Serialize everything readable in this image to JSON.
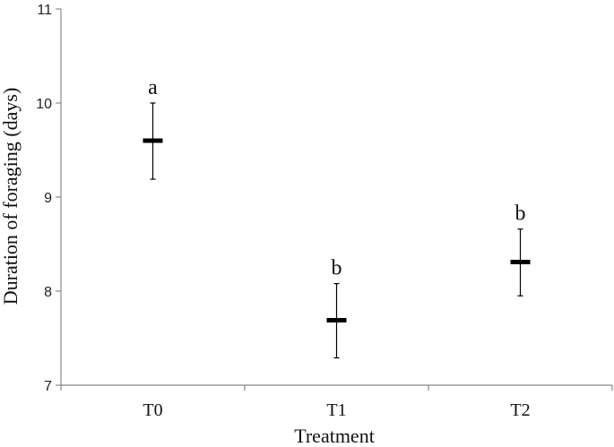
{
  "chart_data": {
    "type": "scatter",
    "title": "",
    "xlabel": "Treatment",
    "ylabel": "Duration of foraging (days)",
    "categories": [
      "T0",
      "T1",
      "T2"
    ],
    "series": [
      {
        "values": [
          9.6,
          7.69,
          8.31
        ],
        "error_low": [
          9.19,
          7.29,
          7.95
        ],
        "error_high": [
          10.0,
          8.08,
          8.66
        ],
        "significance": [
          "a",
          "b",
          "b"
        ]
      }
    ],
    "ylim": [
      7,
      11
    ],
    "yticks": [
      "7",
      "8",
      "9",
      "10",
      "11"
    ],
    "grid": false,
    "legend": "none",
    "colors": {
      "axis": "#888888",
      "marker": "#000000",
      "errorbar": "#000000"
    }
  }
}
